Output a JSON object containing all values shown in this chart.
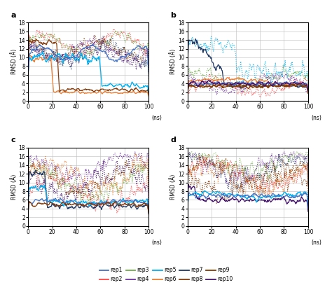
{
  "rep_colors": {
    "rep1": "#4472C4",
    "rep2": "#FF4444",
    "rep3": "#70AD47",
    "rep4": "#7030A0",
    "rep5": "#00B0F0",
    "rep6": "#ED7D31",
    "rep7": "#1F3864",
    "rep8": "#843C0C",
    "rep9": "#833C00",
    "rep10": "#44136C"
  },
  "subplot_labels": [
    "a",
    "b",
    "c",
    "d"
  ],
  "ns_label": "(ns)",
  "ylabel": "RMSD (Å)",
  "xlim": [
    0,
    100
  ],
  "ylim": [
    0,
    18
  ],
  "yticks": [
    0,
    2,
    4,
    6,
    8,
    10,
    12,
    14,
    16,
    18
  ],
  "xticks": [
    0,
    20,
    40,
    60,
    80,
    100
  ],
  "legend_entries": [
    "rep1",
    "rep2",
    "rep3",
    "rep4",
    "rep5",
    "rep6",
    "rep7",
    "rep8",
    "rep9",
    "rep10"
  ],
  "solid_reps": {
    "0": [
      "rep6",
      "rep8",
      "rep5",
      "rep1"
    ],
    "1": [
      "rep7",
      "rep8",
      "rep6",
      "rep1",
      "rep9",
      "rep10"
    ],
    "2": [
      "rep7",
      "rep5",
      "rep1",
      "rep8"
    ],
    "3": [
      "rep10",
      "rep5",
      "rep1"
    ]
  },
  "dashed_reps": {
    "0": [
      "rep2",
      "rep3",
      "rep4",
      "rep7",
      "rep9",
      "rep10"
    ],
    "1": [
      "rep2",
      "rep3",
      "rep4",
      "rep5"
    ],
    "2": [
      "rep2",
      "rep3",
      "rep4",
      "rep6",
      "rep9",
      "rep10"
    ],
    "3": [
      "rep2",
      "rep3",
      "rep4",
      "rep6",
      "rep7",
      "rep8",
      "rep9"
    ]
  }
}
